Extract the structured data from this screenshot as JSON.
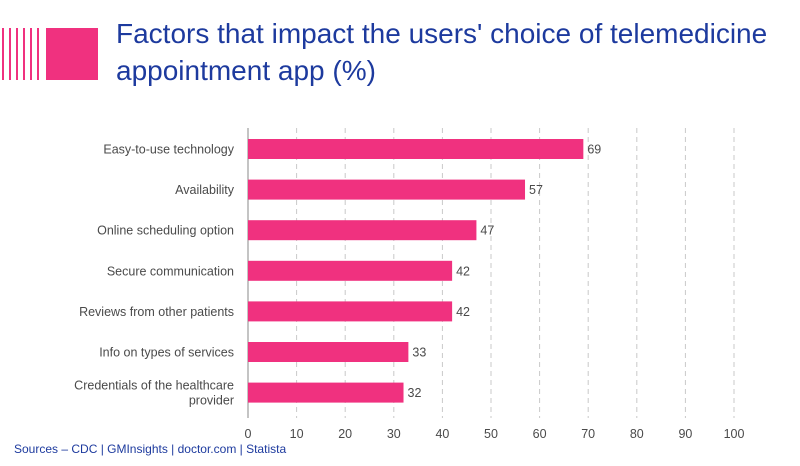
{
  "title": "Factors that impact the users' choice of telemedicine appointment app (%)",
  "source": "Sources  –  CDC | GMInsights | doctor.com | Statista",
  "colors": {
    "bar": "#f0317f",
    "title": "#1d3a9e",
    "grid": "#c9c9c9",
    "text": "#4a4a4a"
  },
  "chart_data": {
    "type": "bar",
    "orientation": "horizontal",
    "title": "Factors that impact the users' choice of telemedicine appointment app (%)",
    "categories": [
      "Easy-to-use technology",
      "Availability",
      "Online scheduling option",
      "Secure communication",
      "Reviews from other patients",
      "Info on types of services",
      "Credentials of the healthcare provider"
    ],
    "values": [
      69,
      57,
      47,
      42,
      42,
      33,
      32
    ],
    "data_labels": [
      "69",
      "57",
      "47",
      "42",
      "42",
      "33",
      "32"
    ],
    "xlim": [
      0,
      100
    ],
    "ticks": [
      0,
      10,
      20,
      30,
      40,
      50,
      60,
      70,
      80,
      90,
      100
    ],
    "tick_labels": [
      "0",
      "10",
      "20",
      "30",
      "40",
      "50",
      "60",
      "70",
      "80",
      "90",
      "100"
    ],
    "grid": true,
    "legend": "none"
  }
}
